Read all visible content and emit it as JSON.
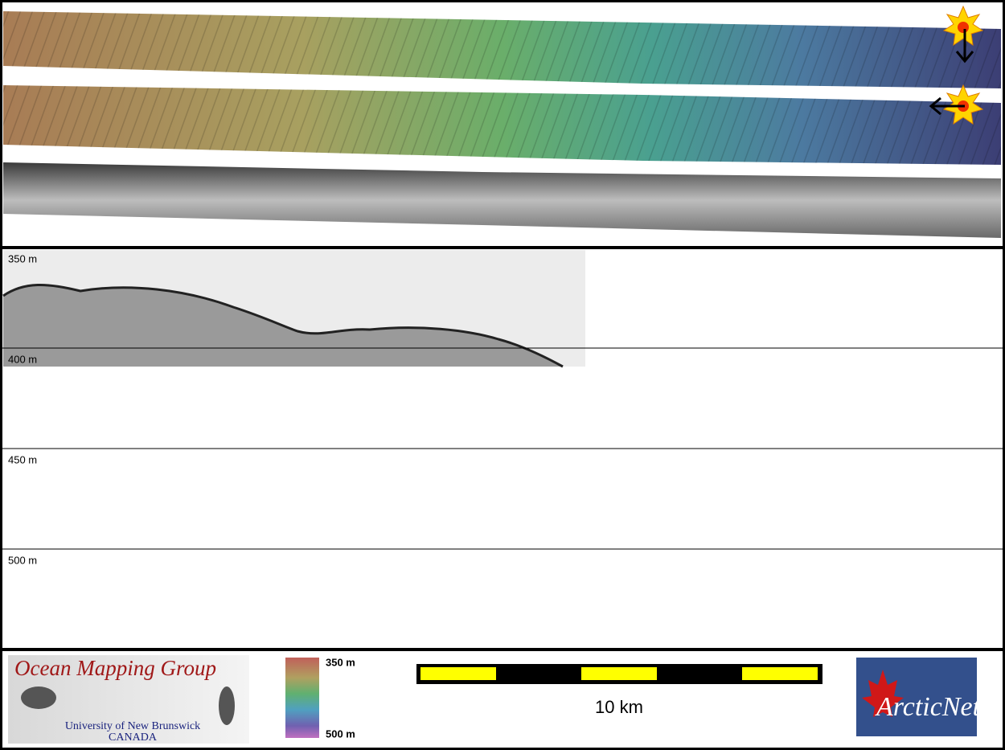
{
  "profile": {
    "depth_labels": [
      "350 m",
      "400 m",
      "450 m",
      "500 m"
    ]
  },
  "colorbar": {
    "top_label": "350 m",
    "bottom_label": "500 m"
  },
  "scale_bar": {
    "label": "10 km"
  },
  "logos": {
    "omg": {
      "title": "Ocean Mapping Group",
      "university": "University of New Brunswick",
      "country": "CANADA"
    },
    "arcticnet": {
      "title": "ArcticNet"
    }
  }
}
